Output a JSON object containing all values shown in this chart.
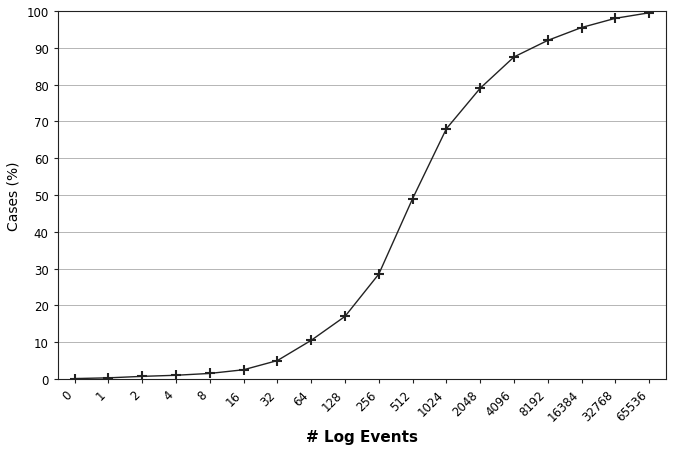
{
  "x_labels": [
    "0",
    "1",
    "2",
    "4",
    "8",
    "16",
    "32",
    "64",
    "128",
    "256",
    "512",
    "1024",
    "2048",
    "4096",
    "8192",
    "16384",
    "32768",
    "65536"
  ],
  "y_values": [
    0.1,
    0.3,
    0.7,
    1.0,
    1.5,
    2.5,
    5.0,
    10.5,
    17.0,
    28.5,
    49.0,
    68.0,
    79.0,
    87.5,
    92.0,
    95.5,
    98.0,
    99.5
  ],
  "xlabel": "# Log Events",
  "ylabel": "Cases (%)",
  "ylim": [
    0,
    100
  ],
  "yticks": [
    0,
    10,
    20,
    30,
    40,
    50,
    60,
    70,
    80,
    90,
    100
  ],
  "line_color": "#222222",
  "marker": "+",
  "markersize": 7,
  "markeredgewidth": 1.5,
  "linewidth": 1.0,
  "background_color": "#ffffff",
  "grid_color": "#aaaaaa",
  "xlabel_fontsize": 11,
  "ylabel_fontsize": 10,
  "tick_fontsize": 8.5,
  "xlabel_fontweight": "bold"
}
